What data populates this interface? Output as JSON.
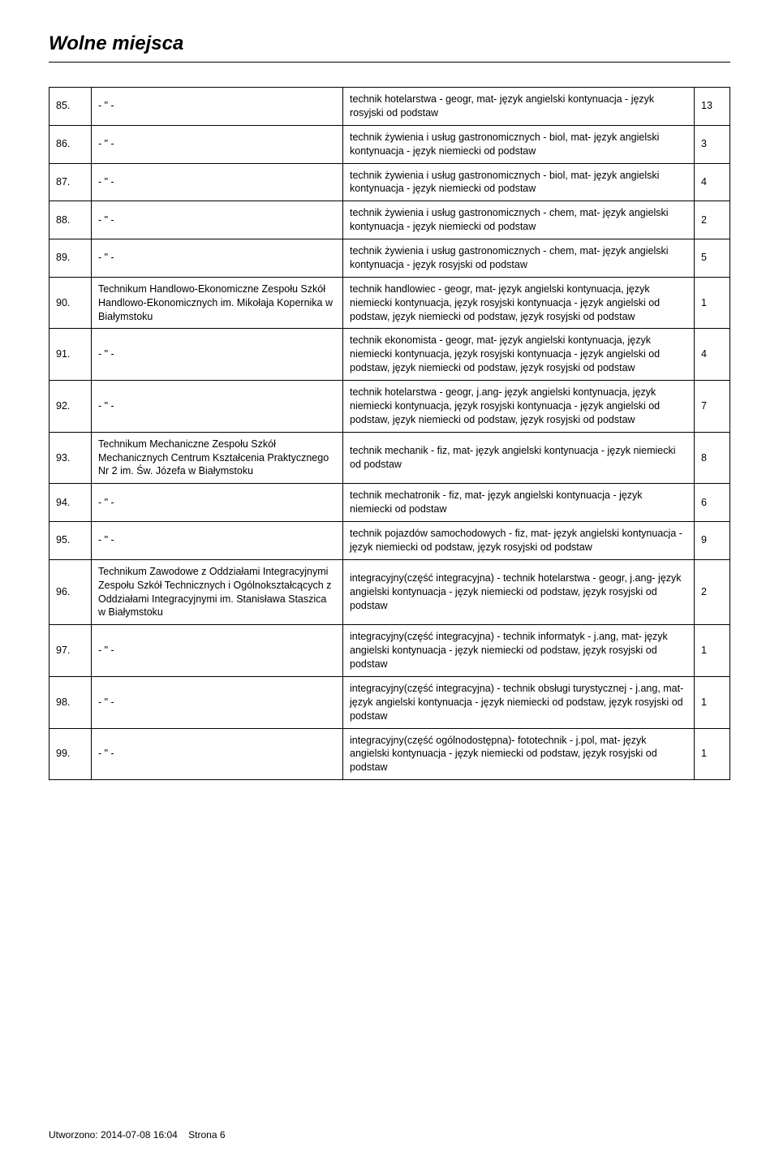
{
  "title": "Wolne miejsca",
  "columns": {
    "num_width": 52,
    "school_width": 310,
    "val_width": 44
  },
  "rows": [
    {
      "num": "85.",
      "school": "- \" -",
      "desc": "technik hotelarstwa - geogr, mat- język angielski kontynuacja - język rosyjski od podstaw",
      "val": "13"
    },
    {
      "num": "86.",
      "school": "- \" -",
      "desc": "technik żywienia i usług gastronomicznych - biol, mat- język angielski kontynuacja - język niemiecki od podstaw",
      "val": "3"
    },
    {
      "num": "87.",
      "school": "- \" -",
      "desc": "technik żywienia i usług gastronomicznych - biol, mat- język angielski kontynuacja - język niemiecki od podstaw",
      "val": "4"
    },
    {
      "num": "88.",
      "school": "- \" -",
      "desc": "technik żywienia i usług gastronomicznych - chem, mat- język angielski kontynuacja - język niemiecki od podstaw",
      "val": "2"
    },
    {
      "num": "89.",
      "school": "- \" -",
      "desc": "technik żywienia i usług gastronomicznych - chem, mat- język angielski kontynuacja - język rosyjski od podstaw",
      "val": "5"
    },
    {
      "num": "90.",
      "school": "Technikum Handlowo-Ekonomiczne Zespołu Szkół Handlowo-Ekonomicznych im. Mikołaja Kopernika w Białymstoku",
      "desc": "technik handlowiec - geogr, mat- język angielski kontynuacja, język niemiecki kontynuacja, język rosyjski kontynuacja - język angielski od podstaw, język niemiecki od podstaw, język rosyjski od podstaw",
      "val": "1"
    },
    {
      "num": "91.",
      "school": "- \" -",
      "desc": "technik ekonomista - geogr, mat- język angielski kontynuacja, język niemiecki kontynuacja, język rosyjski kontynuacja - język angielski od podstaw, język niemiecki od podstaw, język rosyjski od podstaw",
      "val": "4"
    },
    {
      "num": "92.",
      "school": "- \" -",
      "desc": "technik hotelarstwa - geogr, j.ang- język angielski kontynuacja, język niemiecki kontynuacja, język rosyjski kontynuacja - język angielski od podstaw, język niemiecki od podstaw, język rosyjski od podstaw",
      "val": "7"
    },
    {
      "num": "93.",
      "school": "Technikum Mechaniczne Zespołu Szkół Mechanicznych Centrum Kształcenia Praktycznego Nr 2 im. Św. Józefa w Białymstoku",
      "desc": "technik mechanik - fiz, mat- język angielski kontynuacja - język niemiecki od podstaw",
      "val": "8"
    },
    {
      "num": "94.",
      "school": "- \" -",
      "desc": "technik mechatronik - fiz, mat- język angielski kontynuacja - język niemiecki od podstaw",
      "val": "6"
    },
    {
      "num": "95.",
      "school": "- \" -",
      "desc": "technik pojazdów samochodowych - fiz, mat- język angielski kontynuacja - język niemiecki od podstaw, język rosyjski od podstaw",
      "val": "9"
    },
    {
      "num": "96.",
      "school": "Technikum Zawodowe z Oddziałami Integracyjnymi Zespołu Szkół Technicznych i Ogólnokształcących z Oddziałami Integracyjnymi im. Stanisława Staszica w Białymstoku",
      "desc": "integracyjny(część integracyjna) - technik hotelarstwa - geogr, j.ang- język angielski kontynuacja - język niemiecki od podstaw, język rosyjski od podstaw",
      "val": "2"
    },
    {
      "num": "97.",
      "school": "- \" -",
      "desc": "integracyjny(część integracyjna) - technik informatyk - j.ang, mat- język angielski kontynuacja - język niemiecki od podstaw, język rosyjski od podstaw",
      "val": "1"
    },
    {
      "num": "98.",
      "school": "- \" -",
      "desc": "integracyjny(część integracyjna) - technik obsługi turystycznej - j.ang, mat- język angielski kontynuacja - język niemiecki od podstaw, język rosyjski od podstaw",
      "val": "1"
    },
    {
      "num": "99.",
      "school": "- \" -",
      "desc": "integracyjny(część ogólnodostępna)- fototechnik - j.pol, mat- język angielski kontynuacja - język niemiecki od podstaw, język rosyjski od podstaw",
      "val": "1"
    }
  ],
  "footer": {
    "created_label": "Utworzono:",
    "timestamp": "2014-07-08 16:04",
    "page_label": "Strona",
    "page_number": "6"
  },
  "style": {
    "font_family": "Arial",
    "title_fontsize": 24,
    "body_fontsize": 12.5,
    "footer_fontsize": 12,
    "text_color": "#000000",
    "background_color": "#ffffff",
    "border_color": "#000000"
  }
}
